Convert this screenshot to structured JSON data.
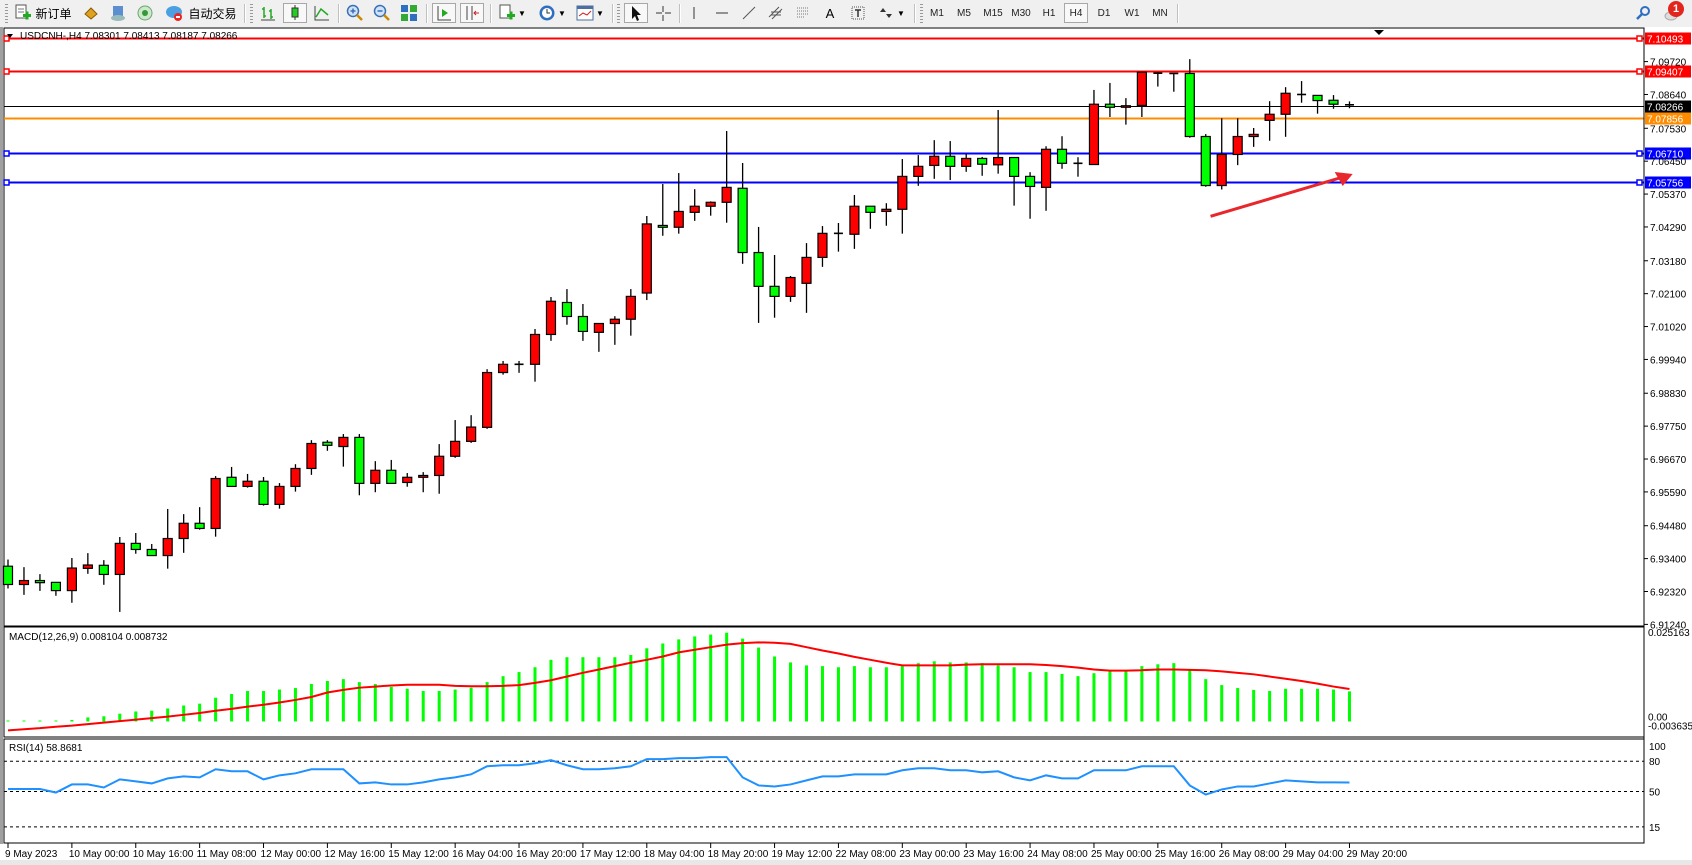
{
  "toolbar": {
    "new_order_label": "新订单",
    "auto_trading_label": "自动交易",
    "timeframes": [
      "M1",
      "M5",
      "M15",
      "M30",
      "H1",
      "H4",
      "D1",
      "W1",
      "MN"
    ],
    "active_timeframe": "H4",
    "notification_count": "1",
    "icons": [
      "new-order-icon",
      "market-watch-icon",
      "data-window-icon",
      "navigator-icon",
      "signals-icon",
      "auto-trading-icon",
      "bar-chart-icon",
      "candlestick-icon",
      "line-chart-icon",
      "zoom-in-icon",
      "zoom-out-icon",
      "tile-windows-icon",
      "chart-shift-icon",
      "autoscroll-icon",
      "indicators-icon",
      "periods-icon",
      "templates-icon",
      "cursor-icon",
      "crosshair-icon",
      "vertical-line-icon",
      "horizontal-line-icon",
      "trendline-icon",
      "equidistant-channel-icon",
      "fibonacci-icon",
      "text-icon",
      "text-label-icon",
      "arrows-icon",
      "search-icon",
      "notifications-icon"
    ]
  },
  "chart": {
    "header": "USDCNH-,H4  7.08301 7.08413 7.08187 7.08266",
    "macd_label": "MACD(12,26,9) 0.008104 0.008732",
    "rsi_label": "RSI(14) 58.8681"
  },
  "colors": {
    "bull": "#ff0000",
    "bear": "#00ff00",
    "resistance_line": "#ff0000",
    "support_line": "#0000ff",
    "orange_line": "#ff8c00",
    "current_price": "#000000",
    "macd_histogram": "#00ff00",
    "macd_signal": "#ff0000",
    "rsi_line": "#1e90ff",
    "arrow": "#e8262b"
  },
  "chart_data": [
    {
      "type": "candlestick",
      "symbol": "USDCNH-",
      "timeframe": "H4",
      "ylim": [
        6.9122,
        7.1079
      ],
      "grid": false,
      "y_tick_labels": [
        "7.09720",
        "7.08640",
        "7.07530",
        "7.06450",
        "7.05370",
        "7.04290",
        "7.03180",
        "7.02100",
        "7.01020",
        "6.99940",
        "6.98830",
        "6.97750",
        "6.96670",
        "6.95590",
        "6.94480",
        "6.93400",
        "6.92320",
        "6.91240"
      ],
      "x_tick_labels": [
        "9 May 2023",
        "10 May 00:00",
        "10 May 16:00",
        "11 May 08:00",
        "12 May 00:00",
        "12 May 16:00",
        "15 May 12:00",
        "16 May 04:00",
        "16 May 20:00",
        "17 May 12:00",
        "18 May 04:00",
        "18 May 20:00",
        "19 May 12:00",
        "22 May 08:00",
        "23 May 00:00",
        "23 May 16:00",
        "24 May 08:00",
        "25 May 00:00",
        "25 May 16:00",
        "26 May 08:00",
        "29 May 04:00",
        "29 May 20:00"
      ],
      "ohlc_fields": [
        "open",
        "high",
        "low",
        "close"
      ],
      "candles": [
        [
          6.9315,
          6.9337,
          6.9242,
          6.9255
        ],
        [
          6.9255,
          6.9312,
          6.9221,
          6.9268
        ],
        [
          6.9268,
          6.9289,
          6.9234,
          6.9261
        ],
        [
          6.9262,
          6.9262,
          6.9218,
          6.9235
        ],
        [
          6.9235,
          6.9342,
          6.9195,
          6.9309
        ],
        [
          6.9308,
          6.9358,
          6.929,
          6.9319
        ],
        [
          6.9318,
          6.9335,
          6.9254,
          6.9288
        ],
        [
          6.9288,
          6.9411,
          6.9165,
          6.939
        ],
        [
          6.939,
          6.9424,
          6.9356,
          6.937
        ],
        [
          6.937,
          6.9388,
          6.935,
          6.935
        ],
        [
          6.935,
          6.9503,
          6.9307,
          6.9406
        ],
        [
          6.9406,
          6.9486,
          6.9359,
          6.9456
        ],
        [
          6.9456,
          6.9509,
          6.9435,
          6.9439
        ],
        [
          6.9439,
          6.9611,
          6.9412,
          6.9603
        ],
        [
          6.9607,
          6.9641,
          6.9577,
          6.9577
        ],
        [
          6.9577,
          6.9618,
          6.9573,
          6.9594
        ],
        [
          6.9594,
          6.9608,
          6.9514,
          6.9518
        ],
        [
          6.9518,
          6.9588,
          6.9504,
          6.9577
        ],
        [
          6.9577,
          6.965,
          6.956,
          6.9636
        ],
        [
          6.9636,
          6.9729,
          6.9615,
          6.9718
        ],
        [
          6.9722,
          6.9729,
          6.9694,
          6.9712
        ],
        [
          6.9708,
          6.9749,
          6.9642,
          6.9738
        ],
        [
          6.9738,
          6.9749,
          6.9548,
          6.9587
        ],
        [
          6.9587,
          6.966,
          6.9558,
          6.963
        ],
        [
          6.963,
          6.9664,
          6.9587,
          6.9587
        ],
        [
          6.959,
          6.9621,
          6.9576,
          6.9607
        ],
        [
          6.9607,
          6.9624,
          6.9558,
          6.9613
        ],
        [
          6.9613,
          6.9716,
          6.9553,
          6.9676
        ],
        [
          6.9676,
          6.9795,
          6.9671,
          6.9725
        ],
        [
          6.9725,
          6.9811,
          6.972,
          6.9772
        ],
        [
          6.9771,
          6.9962,
          6.9766,
          6.9951
        ],
        [
          6.9951,
          6.9989,
          6.9944,
          6.9978
        ],
        [
          6.9978,
          6.9989,
          6.995,
          6.9977
        ],
        [
          6.9978,
          7.0094,
          6.9921,
          7.0076
        ],
        [
          7.0076,
          7.0199,
          7.0055,
          7.0185
        ],
        [
          7.0181,
          7.0225,
          7.0108,
          7.0135
        ],
        [
          7.0135,
          7.0176,
          7.0055,
          7.0086
        ],
        [
          7.0083,
          7.0112,
          7.0019,
          7.0112
        ],
        [
          7.0112,
          7.0136,
          7.0042,
          7.0126
        ],
        [
          7.0126,
          7.0225,
          7.0072,
          7.0201
        ],
        [
          7.0212,
          7.0465,
          7.0189,
          7.0439
        ],
        [
          7.0434,
          7.057,
          7.04,
          7.0428
        ],
        [
          7.0428,
          7.0606,
          7.0407,
          7.048
        ],
        [
          7.0477,
          7.0553,
          7.0449,
          7.0497
        ],
        [
          7.0497,
          7.0513,
          7.0466,
          7.051
        ],
        [
          7.051,
          7.0744,
          7.0443,
          7.0559
        ],
        [
          7.0556,
          7.0639,
          7.0308,
          7.0345
        ],
        [
          7.0345,
          7.0429,
          7.0114,
          7.0234
        ],
        [
          7.0234,
          7.0337,
          7.0131,
          7.0201
        ],
        [
          7.0201,
          7.0268,
          7.0183,
          7.0263
        ],
        [
          7.0244,
          7.0376,
          7.0147,
          7.0329
        ],
        [
          7.0329,
          7.0432,
          7.0298,
          7.0408
        ],
        [
          7.0408,
          7.0442,
          7.0348,
          7.0407
        ],
        [
          7.0405,
          7.0534,
          7.0357,
          7.0497
        ],
        [
          7.0497,
          7.0497,
          7.0423,
          7.0477
        ],
        [
          7.048,
          7.0507,
          7.0433,
          7.0487
        ],
        [
          7.0487,
          7.0652,
          7.0407,
          7.0595
        ],
        [
          7.0595,
          7.0665,
          7.0564,
          7.0628
        ],
        [
          7.0631,
          7.0714,
          7.0587,
          7.0661
        ],
        [
          7.0661,
          7.0711,
          7.0583,
          7.0628
        ],
        [
          7.0628,
          7.0668,
          7.061,
          7.0654
        ],
        [
          7.0654,
          7.0659,
          7.0597,
          7.0635
        ],
        [
          7.0633,
          7.0813,
          7.0604,
          7.0657
        ],
        [
          7.0657,
          7.0657,
          7.0499,
          7.0595
        ],
        [
          7.0595,
          7.0609,
          7.0456,
          7.0562
        ],
        [
          7.0559,
          7.0694,
          7.0482,
          7.0684
        ],
        [
          7.0684,
          7.0727,
          7.062,
          7.0638
        ],
        [
          7.0638,
          7.0658,
          7.0594,
          7.0638
        ],
        [
          7.0634,
          7.0879,
          7.0634,
          7.0832
        ],
        [
          7.0832,
          7.0902,
          7.079,
          7.0822
        ],
        [
          7.0822,
          7.0852,
          7.0765,
          7.0827
        ],
        [
          7.0828,
          7.0938,
          7.079,
          7.0937
        ],
        [
          7.0934,
          7.0938,
          7.089,
          7.0934
        ],
        [
          7.0933,
          7.0933,
          7.0873,
          7.0933
        ],
        [
          7.0933,
          7.098,
          7.0722,
          7.0726
        ],
        [
          7.0726,
          7.0734,
          7.0561,
          7.0565
        ],
        [
          7.0565,
          7.0786,
          7.0552,
          7.0667
        ],
        [
          7.0667,
          7.0786,
          7.0632,
          7.0726
        ],
        [
          7.0726,
          7.0754,
          7.0692,
          7.0733
        ],
        [
          7.0779,
          7.0842,
          7.0712,
          7.0799
        ],
        [
          7.0799,
          7.0888,
          7.0725,
          7.0868
        ],
        [
          7.0864,
          7.0908,
          7.0837,
          7.0863
        ],
        [
          7.0861,
          7.0861,
          7.0801,
          7.0844
        ],
        [
          7.0845,
          7.0862,
          7.0817,
          7.0832
        ],
        [
          7.08301,
          7.08413,
          7.08187,
          7.08266
        ]
      ],
      "horizontal_lines": [
        {
          "price": "7.10493",
          "color": "#ff0000",
          "markers": true
        },
        {
          "price": "7.09407",
          "color": "#ff0000",
          "markers": true
        },
        {
          "price": "7.08266",
          "color": "#000000",
          "markers": false
        },
        {
          "price": "7.07856",
          "color": "#ff8c00",
          "markers": false
        },
        {
          "price": "7.06710",
          "color": "#0000ff",
          "markers": true
        },
        {
          "price": "7.05756",
          "color": "#0000ff",
          "markers": true
        }
      ],
      "annotations": [
        {
          "type": "arrow",
          "from": {
            "candle": "25 May 20:00",
            "price": 7.0464
          },
          "to": {
            "candle": "29 May 20:00",
            "price": 7.0603
          },
          "color": "#e8262b"
        }
      ]
    },
    {
      "type": "bar+line",
      "indicator": "MACD(12,26,9)",
      "ylim": [
        -0.003635,
        0.025163
      ],
      "y_tick_labels": [
        "0.025163",
        "0.00",
        "-0.003635"
      ],
      "series": [
        {
          "name": "MACD",
          "kind": "histogram",
          "values": [
            0.0001,
            0.0001,
            0.0001,
            0.0001,
            0.0004,
            0.0011,
            0.0014,
            0.0021,
            0.0027,
            0.0029,
            0.0035,
            0.0043,
            0.0048,
            0.0064,
            0.0074,
            0.0082,
            0.0082,
            0.0086,
            0.009,
            0.0101,
            0.0109,
            0.0114,
            0.0106,
            0.0101,
            0.0093,
            0.0088,
            0.0082,
            0.0082,
            0.0086,
            0.0091,
            0.0106,
            0.0122,
            0.0133,
            0.0146,
            0.0166,
            0.0173,
            0.0173,
            0.0173,
            0.0173,
            0.0179,
            0.0197,
            0.021,
            0.0221,
            0.0229,
            0.0234,
            0.0239,
            0.0223,
            0.0199,
            0.0175,
            0.0159,
            0.0151,
            0.0149,
            0.0146,
            0.0149,
            0.0146,
            0.0146,
            0.0149,
            0.0157,
            0.0162,
            0.0159,
            0.0159,
            0.0157,
            0.0151,
            0.0146,
            0.0133,
            0.0133,
            0.0128,
            0.0122,
            0.013,
            0.0136,
            0.0136,
            0.0149,
            0.0154,
            0.0157,
            0.0138,
            0.0114,
            0.0098,
            0.009,
            0.0085,
            0.0082,
            0.0088,
            0.0088,
            0.0088,
            0.0086,
            0.008104
          ]
        },
        {
          "name": "Signal",
          "kind": "line",
          "values": [
            -0.0024,
            -0.0021,
            -0.0018,
            -0.0014,
            -0.0011,
            -0.0007,
            -0.0003,
            0.0001,
            0.0005,
            0.0009,
            0.0013,
            0.0018,
            0.0023,
            0.0029,
            0.0034,
            0.004,
            0.0045,
            0.0051,
            0.0058,
            0.0066,
            0.0078,
            0.0085,
            0.0091,
            0.0094,
            0.0097,
            0.0099,
            0.0099,
            0.0099,
            0.0096,
            0.0095,
            0.0095,
            0.0096,
            0.0098,
            0.0104,
            0.0111,
            0.0121,
            0.0131,
            0.014,
            0.0149,
            0.0158,
            0.0166,
            0.0175,
            0.0186,
            0.0193,
            0.02,
            0.0207,
            0.0211,
            0.0213,
            0.0212,
            0.0209,
            0.02,
            0.0191,
            0.0183,
            0.0174,
            0.0166,
            0.0158,
            0.0151,
            0.0151,
            0.0151,
            0.0151,
            0.0153,
            0.0154,
            0.0154,
            0.0154,
            0.0154,
            0.0152,
            0.0149,
            0.0145,
            0.014,
            0.0137,
            0.0137,
            0.0138,
            0.014,
            0.014,
            0.0139,
            0.0138,
            0.0135,
            0.0131,
            0.0127,
            0.0121,
            0.0115,
            0.0109,
            0.0102,
            0.0094,
            0.008732
          ]
        }
      ]
    },
    {
      "type": "line",
      "indicator": "RSI(14)",
      "ylim": [
        0,
        100
      ],
      "levels": [
        80,
        50,
        15
      ],
      "y_tick_labels": [
        "100",
        "80",
        "50",
        "15"
      ],
      "series": [
        {
          "name": "RSI(14)",
          "values": [
            52.5,
            52.5,
            52.5,
            49,
            57,
            57,
            54,
            62,
            60,
            58,
            63,
            65,
            64,
            72,
            70,
            70,
            62,
            66,
            68,
            72,
            72,
            72,
            58,
            59,
            57,
            57,
            59,
            62,
            64,
            67,
            75,
            76,
            76,
            78,
            81,
            76,
            72,
            72,
            73,
            75,
            82,
            82,
            83,
            83,
            84,
            84,
            64,
            56,
            55,
            57,
            61,
            65,
            65,
            67,
            67,
            67,
            71,
            73,
            73,
            71,
            71,
            69,
            70,
            64,
            61,
            66,
            63,
            63,
            71,
            71,
            71,
            75,
            75,
            75,
            56,
            47,
            52,
            55,
            55,
            58,
            61,
            60,
            59,
            59,
            58.8681
          ]
        }
      ]
    }
  ]
}
